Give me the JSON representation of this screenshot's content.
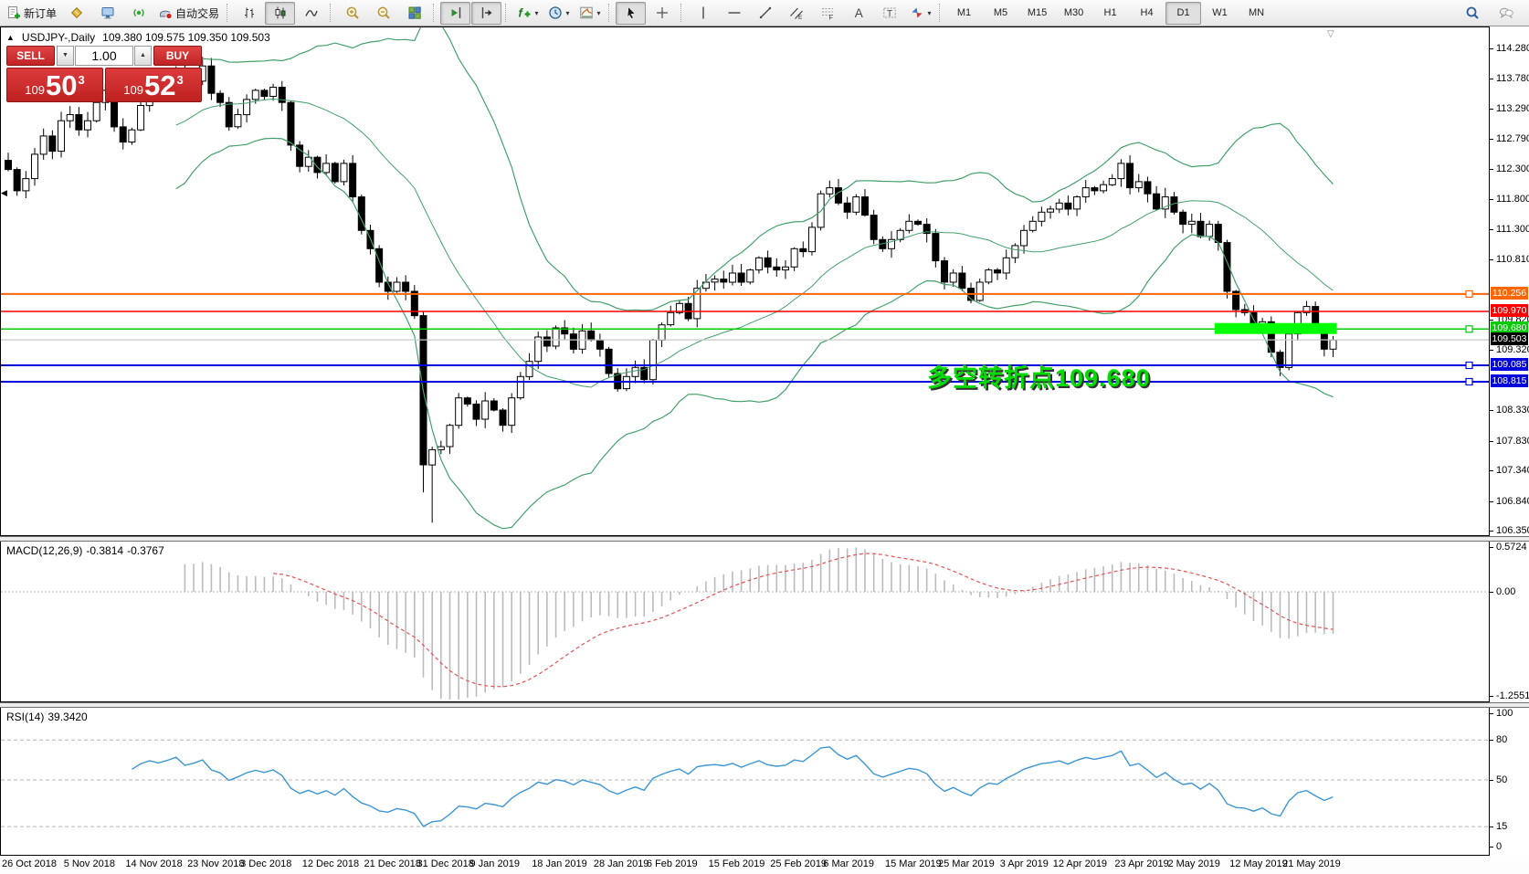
{
  "glyphs": {
    "collapse": "▲",
    "shift_marker": "▽",
    "left_marker": "◀",
    "dropdown": "▾",
    "spinner_up": "▲",
    "spinner_down": "▼"
  },
  "toolbar": {
    "new_order_label": "新订单",
    "autotrade_label": "自动交易",
    "groups": [
      {
        "name": "trade-group",
        "items": [
          {
            "name": "new-order-button",
            "icon": "new-order-icon",
            "label_key": "new_order_label"
          },
          {
            "name": "mql5-community-button",
            "icon": "gold-gem-icon"
          },
          {
            "name": "market-watch-button",
            "icon": "monitor-icon"
          },
          {
            "name": "signals-button",
            "icon": "signal-icon"
          },
          {
            "name": "autotrading-button",
            "icon": "autotrade-icon",
            "label_key": "autotrade_label"
          }
        ]
      },
      {
        "name": "chart-type-group",
        "items": [
          {
            "name": "bar-chart-button",
            "icon": "bar-chart-icon"
          },
          {
            "name": "candlestick-button",
            "icon": "candlestick-icon",
            "active": true
          },
          {
            "name": "line-chart-button",
            "icon": "line-chart-icon"
          }
        ]
      },
      {
        "name": "zoom-group",
        "items": [
          {
            "name": "zoom-in-button",
            "icon": "zoom-in-icon"
          },
          {
            "name": "zoom-out-button",
            "icon": "zoom-out-icon"
          },
          {
            "name": "tile-windows-button",
            "icon": "tile-windows-icon"
          }
        ]
      },
      {
        "name": "scroll-group",
        "items": [
          {
            "name": "auto-scroll-button",
            "icon": "auto-scroll-icon",
            "active": true
          },
          {
            "name": "chart-shift-button",
            "icon": "chart-shift-icon",
            "active": true
          }
        ]
      },
      {
        "name": "insert-group",
        "items": [
          {
            "name": "indicators-button",
            "icon": "indicators-icon",
            "dropdown": true
          },
          {
            "name": "periods-button",
            "icon": "clock-icon",
            "dropdown": true
          },
          {
            "name": "templates-button",
            "icon": "template-icon",
            "dropdown": true
          }
        ]
      },
      {
        "name": "cursor-group",
        "items": [
          {
            "name": "cursor-button",
            "icon": "cursor-icon",
            "active": true
          },
          {
            "name": "crosshair-button",
            "icon": "crosshair-icon"
          }
        ]
      },
      {
        "name": "objects-group",
        "items": [
          {
            "name": "vertical-line-button",
            "icon": "vline-icon"
          },
          {
            "name": "horizontal-line-button",
            "icon": "hline-icon"
          },
          {
            "name": "trendline-button",
            "icon": "trendline-icon"
          },
          {
            "name": "equidistant-channel-button",
            "icon": "channel-icon"
          },
          {
            "name": "fibonacci-button",
            "icon": "fibonacci-icon"
          },
          {
            "name": "text-button",
            "icon": "text-a-icon"
          },
          {
            "name": "text-label-button",
            "icon": "text-label-icon"
          },
          {
            "name": "arrows-button",
            "icon": "arrows-icon",
            "dropdown": true
          }
        ]
      },
      {
        "name": "timeframe-group",
        "items": [
          {
            "name": "timeframe-m1-button",
            "label": "M1"
          },
          {
            "name": "timeframe-m5-button",
            "label": "M5"
          },
          {
            "name": "timeframe-m15-button",
            "label": "M15"
          },
          {
            "name": "timeframe-m30-button",
            "label": "M30"
          },
          {
            "name": "timeframe-h1-button",
            "label": "H1"
          },
          {
            "name": "timeframe-h4-button",
            "label": "H4"
          },
          {
            "name": "timeframe-d1-button",
            "label": "D1",
            "active": true
          },
          {
            "name": "timeframe-w1-button",
            "label": "W1"
          },
          {
            "name": "timeframe-mn-button",
            "label": "MN"
          }
        ]
      }
    ],
    "right_items": [
      {
        "name": "search-button",
        "icon": "search-icon"
      },
      {
        "name": "chat-button",
        "icon": "chat-icon"
      }
    ]
  },
  "chart": {
    "symbol_title": "USDJPY-,Daily",
    "open": "109.380",
    "high": "109.575",
    "low": "109.350",
    "close": "109.503",
    "annotation": "多空转折点109.680",
    "price_axis_ticks": [
      "114.280",
      "113.780",
      "113.290",
      "112.790",
      "112.300",
      "111.800",
      "111.300",
      "110.810",
      "109.820",
      "109.320",
      "108.330",
      "107.830",
      "107.340",
      "106.840",
      "106.350"
    ],
    "price_labels": [
      {
        "value": "110.256",
        "color": "#FF6600"
      },
      {
        "value": "109.970",
        "color": "#FF0000"
      },
      {
        "value": "109.680",
        "color": "#00CC00"
      },
      {
        "value": "109.503",
        "color": "#000000",
        "is_current": true
      },
      {
        "value": "109.085",
        "color": "#0000DD"
      },
      {
        "value": "108.815",
        "color": "#0000DD"
      }
    ]
  },
  "trade_panel": {
    "sell_label": "SELL",
    "buy_label": "BUY",
    "volume": "1.00",
    "sell_small": "109",
    "sell_big": "50",
    "sell_sup": "3",
    "buy_small": "109",
    "buy_big": "52",
    "buy_sup": "3"
  },
  "macd_panel": {
    "label": "MACD(12,26,9)",
    "value_main": "-0.3814",
    "value_signal": "-0.3767",
    "axis_ticks": [
      {
        "label": "0.5724",
        "value": 0.5724
      },
      {
        "label": "0.00",
        "value": 0
      },
      {
        "label": "-1.2551",
        "value": -1.2551
      }
    ]
  },
  "rsi_panel": {
    "label": "RSI(14)",
    "value": "39.3420",
    "axis_ticks": [
      {
        "label": "100",
        "value": 100
      },
      {
        "label": "80",
        "value": 80
      },
      {
        "label": "50",
        "value": 50
      },
      {
        "label": "15",
        "value": 15
      },
      {
        "label": "0",
        "value": 0
      }
    ],
    "levels": [
      80,
      50,
      15
    ]
  },
  "date_axis": [
    "26 Oct 2018",
    "5 Nov 2018",
    "14 Nov 2018",
    "23 Nov 2018",
    "3 Dec 2018",
    "12 Dec 2018",
    "21 Dec 2018",
    "31 Dec 2018",
    "9 Jan 2019",
    "18 Jan 2019",
    "28 Jan 2019",
    "6 Feb 2019",
    "15 Feb 2019",
    "25 Feb 2019",
    "6 Mar 2019",
    "15 Mar 2019",
    "25 Mar 2019",
    "3 Apr 2019",
    "12 Apr 2019",
    "23 Apr 2019",
    "2 May 2019",
    "12 May 2019",
    "21 May 2019"
  ],
  "chart_data": {
    "type": "candlestick",
    "symbol": "USDJPY",
    "timeframe": "Daily",
    "title": "USDJPY-,Daily",
    "visible_range": {
      "price_min": 106.31,
      "price_max": 114.6,
      "date_start": "26 Oct 2018",
      "date_end": "22 May 2019"
    },
    "first_open": 112.45,
    "closes": [
      112.3,
      111.95,
      112.15,
      112.55,
      112.85,
      112.6,
      113.1,
      113.2,
      112.95,
      113.1,
      113.4,
      113.6,
      113.0,
      112.75,
      112.95,
      113.35,
      113.6,
      113.5,
      113.7,
      113.95,
      113.6,
      113.75,
      114.0,
      113.55,
      113.4,
      113.0,
      113.2,
      113.45,
      113.6,
      113.5,
      113.65,
      113.4,
      112.7,
      112.35,
      112.5,
      112.25,
      112.4,
      112.1,
      112.4,
      111.85,
      111.3,
      111.0,
      110.45,
      110.3,
      110.45,
      110.3,
      109.9,
      107.45,
      107.7,
      107.75,
      108.1,
      108.55,
      108.45,
      108.2,
      108.5,
      108.35,
      108.1,
      108.55,
      108.9,
      109.15,
      109.55,
      109.4,
      109.7,
      109.6,
      109.35,
      109.65,
      109.5,
      109.35,
      108.95,
      108.7,
      108.9,
      109.05,
      108.85,
      109.5,
      109.75,
      109.95,
      110.1,
      109.85,
      110.35,
      110.45,
      110.5,
      110.45,
      110.6,
      110.45,
      110.65,
      110.85,
      110.7,
      110.65,
      110.7,
      111.0,
      110.95,
      111.35,
      111.9,
      112.0,
      111.75,
      111.6,
      111.85,
      111.55,
      111.15,
      111.0,
      111.15,
      111.3,
      111.45,
      111.4,
      111.25,
      110.8,
      110.45,
      110.6,
      110.35,
      110.15,
      110.45,
      110.65,
      110.6,
      110.85,
      111.05,
      111.3,
      111.45,
      111.6,
      111.65,
      111.75,
      111.65,
      111.85,
      112.0,
      111.95,
      112.05,
      112.15,
      112.4,
      112.0,
      112.1,
      111.9,
      111.65,
      111.85,
      111.6,
      111.4,
      111.45,
      111.2,
      111.4,
      111.1,
      110.3,
      110.0,
      109.95,
      109.7,
      109.8,
      109.3,
      109.05,
      109.6,
      109.95,
      110.05,
      109.7,
      109.35,
      109.5
    ],
    "wick_overrides": {
      "22": {
        "high": 114.15
      },
      "47": {
        "low": 107.0
      },
      "48": {
        "low": 106.5
      }
    },
    "date_label_bars": [
      0,
      7,
      14,
      21,
      27,
      34,
      41,
      47,
      53,
      60,
      67,
      73,
      80,
      87,
      93,
      100,
      106,
      113,
      119,
      126,
      132,
      139,
      145
    ],
    "indicators": {
      "bollinger": {
        "period": 20,
        "deviation": 2,
        "color": "#44A06A"
      },
      "macd": {
        "fast": 12,
        "slow": 26,
        "signal": 9,
        "hist_color": "#BBBBBB",
        "signal_color": "#E05555"
      },
      "rsi": {
        "period": 14,
        "color": "#3D96D2"
      }
    },
    "levels": [
      {
        "price": 110.256,
        "color": "#FF6600",
        "width": 2,
        "marker": true
      },
      {
        "price": 109.97,
        "color": "#FF0000",
        "width": 1.5,
        "marker": false
      },
      {
        "price": 109.68,
        "color": "#00CC00",
        "width": 1.5,
        "marker": true
      },
      {
        "price": 109.503,
        "color": "#C8C8C8",
        "width": 1.2,
        "marker": false,
        "current": true
      },
      {
        "price": 109.085,
        "color": "#0000DD",
        "width": 2,
        "marker": true
      },
      {
        "price": 108.815,
        "color": "#0000DD",
        "width": 2,
        "marker": true
      }
    ],
    "highlight_rect": {
      "color": "#00FF00",
      "price_top": 109.78,
      "price_bottom": 109.6,
      "bar_start": 137,
      "bar_end": 150
    }
  }
}
